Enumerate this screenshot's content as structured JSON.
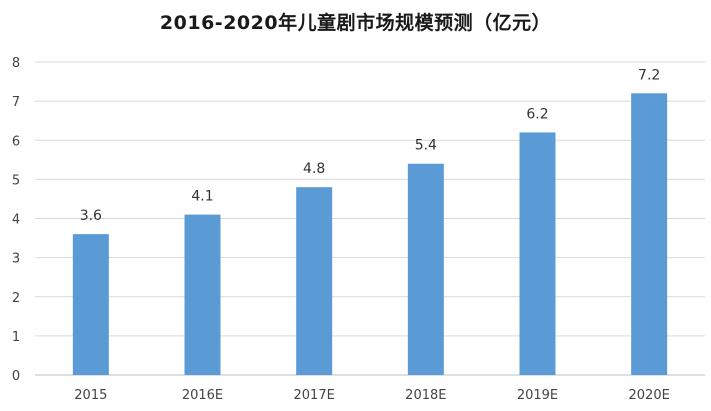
{
  "chart_data": {
    "type": "bar",
    "title": "2016-2020年儿童剧市场规模预测（亿元）",
    "categories": [
      "2015",
      "2016E",
      "2017E",
      "2018E",
      "2019E",
      "2020E"
    ],
    "values": [
      3.6,
      4.1,
      4.8,
      5.4,
      6.2,
      7.2
    ],
    "data_labels": [
      "3.6",
      "4.1",
      "4.8",
      "5.4",
      "6.2",
      "7.2"
    ],
    "y_ticks": [
      0,
      1,
      2,
      3,
      4,
      5,
      6,
      7,
      8
    ],
    "ylim": [
      0,
      8
    ],
    "xlabel": "",
    "ylabel": "",
    "grid": true,
    "legend": "none",
    "bar_color": "#5b9bd5"
  }
}
